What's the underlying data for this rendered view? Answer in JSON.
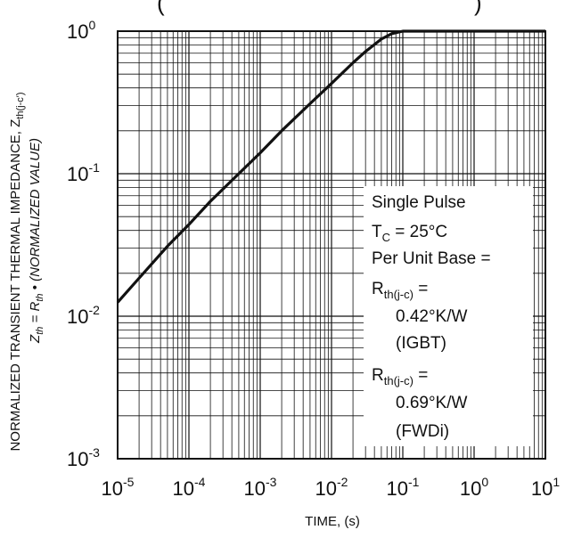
{
  "chart_data": {
    "type": "line",
    "title": "(",
    "title_right": ")",
    "xlabel": "TIME, (s)",
    "ylabel_line1": "NORMALIZED TRANSIENT THERMAL IMPEDANCE, Z",
    "ylabel_line1_sub": "th(j-c')",
    "ylabel_line2": {
      "z": "Z",
      "z_sub": "th",
      "eq": " = R",
      "r_sub": "th",
      "rest": " • (NORMALIZED VALUE)"
    },
    "x_scale": "log",
    "y_scale": "log",
    "xlim": [
      1e-05,
      10
    ],
    "ylim": [
      0.001,
      1
    ],
    "grid": true,
    "x_ticks": [
      {
        "base": "10",
        "exp": "-5"
      },
      {
        "base": "10",
        "exp": "-4"
      },
      {
        "base": "10",
        "exp": "-3"
      },
      {
        "base": "10",
        "exp": "-2"
      },
      {
        "base": "10",
        "exp": "-1"
      },
      {
        "base": "10",
        "exp": "0"
      },
      {
        "base": "10",
        "exp": "1"
      }
    ],
    "y_ticks": [
      {
        "base": "10",
        "exp": "-3"
      },
      {
        "base": "10",
        "exp": "-2"
      },
      {
        "base": "10",
        "exp": "-1"
      },
      {
        "base": "10",
        "exp": "0"
      }
    ],
    "series": [
      {
        "x": [
          1e-05,
          2e-05,
          5e-05,
          0.0001,
          0.0002,
          0.0005,
          0.001,
          0.002,
          0.005,
          0.01,
          0.02,
          0.03,
          0.05,
          0.07,
          0.1,
          0.2,
          0.5,
          1,
          10
        ],
        "y": [
          0.0125,
          0.0185,
          0.031,
          0.044,
          0.064,
          0.1,
          0.14,
          0.2,
          0.31,
          0.43,
          0.6,
          0.72,
          0.88,
          0.96,
          1.0,
          1.0,
          1.0,
          1.0,
          1.0
        ]
      }
    ],
    "legend_placement": "bottom-right",
    "annotation": {
      "line1": "Single Pulse",
      "line2_a": "T",
      "line2_sub": "C",
      "line2_b": " = 25°C",
      "line3": "Per Unit Base =",
      "line4_a": "R",
      "line4_sub": "th(j-c)",
      "line4_b": " =",
      "line5": "0.42°K/W",
      "line6": "(IGBT)",
      "line7_a": "R",
      "line7_sub": "th(j-c)",
      "line7_b": " =",
      "line8": "0.69°K/W",
      "line9": "(FWDi)"
    },
    "colors": {
      "line": "#111111",
      "grid": "#111111",
      "background": "#ffffff"
    }
  }
}
